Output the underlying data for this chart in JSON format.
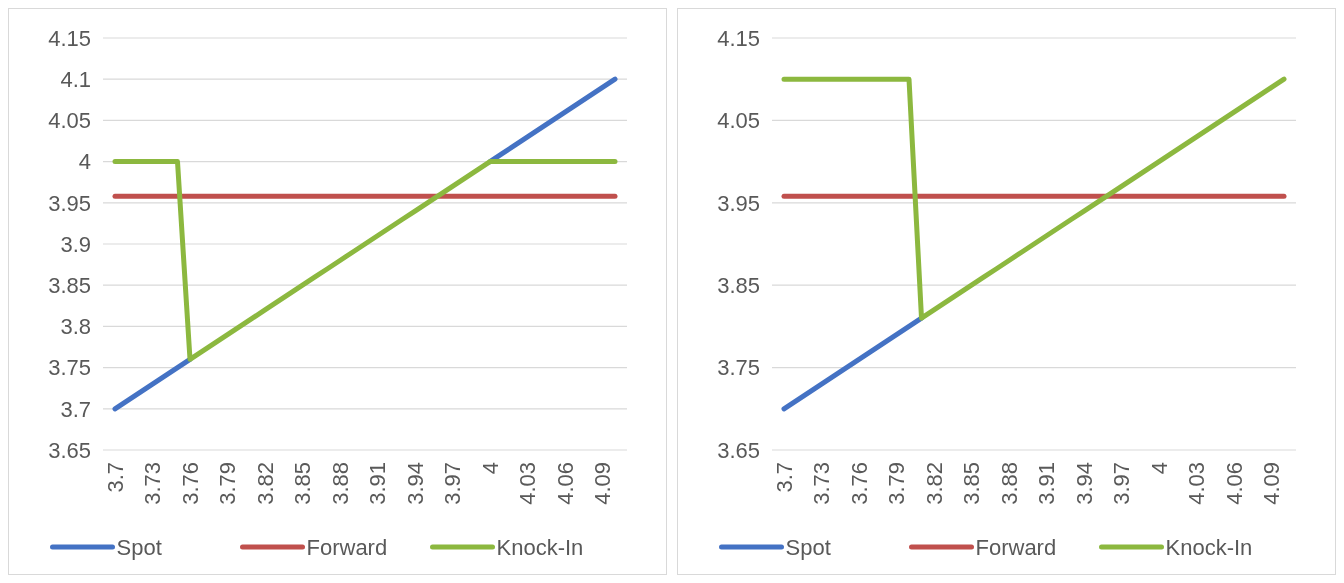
{
  "chart_data": [
    {
      "type": "line",
      "categories": [
        "3.7",
        null,
        null,
        "3.73",
        null,
        null,
        "3.76",
        null,
        null,
        "3.79",
        null,
        null,
        "3.82",
        null,
        null,
        "3.85",
        null,
        null,
        "3.88",
        null,
        null,
        "3.91",
        null,
        null,
        "3.94",
        null,
        null,
        "3.97",
        null,
        null,
        "4",
        null,
        null,
        "4.03",
        null,
        null,
        "4.06",
        null,
        null,
        "4.09",
        null
      ],
      "series": [
        {
          "name": "Spot",
          "color": "#4472c4",
          "values": [
            3.7,
            3.71,
            3.72,
            3.73,
            3.74,
            3.75,
            3.76,
            null,
            null,
            null,
            null,
            null,
            null,
            null,
            null,
            null,
            null,
            null,
            null,
            null,
            null,
            null,
            null,
            null,
            null,
            null,
            null,
            null,
            null,
            null,
            4.0,
            4.01,
            4.02,
            4.03,
            4.04,
            4.05,
            4.06,
            4.07,
            4.08,
            4.09,
            4.1
          ]
        },
        {
          "name": "Forward",
          "color": "#c0504d",
          "values": [
            3.958,
            3.958,
            3.958,
            3.958,
            3.958,
            3.958,
            3.958,
            3.958,
            3.958,
            3.958,
            3.958,
            3.958,
            3.958,
            3.958,
            3.958,
            3.958,
            3.958,
            3.958,
            3.958,
            3.958,
            3.958,
            3.958,
            3.958,
            3.958,
            3.958,
            3.958,
            3.958,
            3.958,
            3.958,
            3.958,
            3.958,
            3.958,
            3.958,
            3.958,
            3.958,
            3.958,
            3.958,
            3.958,
            3.958,
            3.958,
            3.958
          ]
        },
        {
          "name": "Knock-In",
          "color": "#8cb83f",
          "values": [
            4.0,
            4.0,
            4.0,
            4.0,
            4.0,
            4.0,
            3.76,
            3.77,
            3.78,
            3.79,
            3.8,
            3.81,
            3.82,
            3.83,
            3.84,
            3.85,
            3.86,
            3.87,
            3.88,
            3.89,
            3.9,
            3.91,
            3.92,
            3.93,
            3.94,
            3.95,
            3.96,
            3.97,
            3.98,
            3.99,
            4.0,
            4.0,
            4.0,
            4.0,
            4.0,
            4.0,
            4.0,
            4.0,
            4.0,
            4.0,
            4.0
          ]
        }
      ],
      "ylim": [
        3.65,
        4.15
      ],
      "yticks": [
        3.65,
        3.7,
        3.75,
        3.8,
        3.85,
        3.9,
        3.95,
        4,
        4.05,
        4.1,
        4.15
      ],
      "grid": "y",
      "legend": "bottom",
      "line_style": "solid",
      "marker": "none"
    },
    {
      "type": "line",
      "categories": [
        "3.7",
        null,
        null,
        "3.73",
        null,
        null,
        "3.76",
        null,
        null,
        "3.79",
        null,
        null,
        "3.82",
        null,
        null,
        "3.85",
        null,
        null,
        "3.88",
        null,
        null,
        "3.91",
        null,
        null,
        "3.94",
        null,
        null,
        "3.97",
        null,
        null,
        "4",
        null,
        null,
        "4.03",
        null,
        null,
        "4.06",
        null,
        null,
        "4.09",
        null
      ],
      "series": [
        {
          "name": "Spot",
          "color": "#4472c4",
          "values": [
            3.7,
            3.71,
            3.72,
            3.73,
            3.74,
            3.75,
            3.76,
            3.77,
            3.78,
            3.79,
            3.8,
            3.81,
            null,
            null,
            null,
            null,
            null,
            null,
            null,
            null,
            null,
            null,
            null,
            null,
            null,
            null,
            null,
            null,
            null,
            null,
            null,
            null,
            null,
            null,
            null,
            null,
            null,
            null,
            null,
            null,
            null
          ]
        },
        {
          "name": "Forward",
          "color": "#c0504d",
          "values": [
            3.958,
            3.958,
            3.958,
            3.958,
            3.958,
            3.958,
            3.958,
            3.958,
            3.958,
            3.958,
            3.958,
            3.958,
            3.958,
            3.958,
            3.958,
            3.958,
            3.958,
            3.958,
            3.958,
            3.958,
            3.958,
            3.958,
            3.958,
            3.958,
            3.958,
            3.958,
            3.958,
            3.958,
            3.958,
            3.958,
            3.958,
            3.958,
            3.958,
            3.958,
            3.958,
            3.958,
            3.958,
            3.958,
            3.958,
            3.958,
            3.958
          ]
        },
        {
          "name": "Knock-In",
          "color": "#8cb83f",
          "values": [
            4.1,
            4.1,
            4.1,
            4.1,
            4.1,
            4.1,
            4.1,
            4.1,
            4.1,
            4.1,
            4.1,
            3.81,
            3.82,
            3.83,
            3.84,
            3.85,
            3.86,
            3.87,
            3.88,
            3.89,
            3.9,
            3.91,
            3.92,
            3.93,
            3.94,
            3.95,
            3.96,
            3.97,
            3.98,
            3.99,
            4.0,
            4.01,
            4.02,
            4.03,
            4.04,
            4.05,
            4.06,
            4.07,
            4.08,
            4.09,
            4.1
          ]
        }
      ],
      "ylim": [
        3.65,
        4.15
      ],
      "yticks": [
        3.65,
        3.75,
        3.85,
        3.95,
        4.05,
        4.15
      ],
      "grid": "y",
      "legend": "bottom",
      "line_style": "solid",
      "marker": "none"
    }
  ]
}
